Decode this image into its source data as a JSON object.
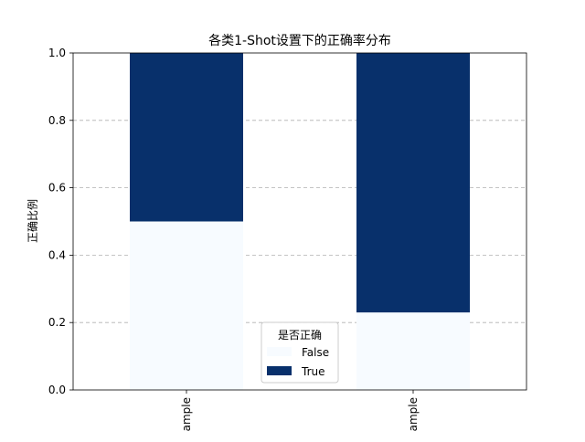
{
  "chart_data": {
    "type": "bar",
    "stacked": true,
    "title": "各类1-Shot设置下的正确率分布",
    "xlabel": "",
    "ylabel": "正确比例",
    "categories": [
      "ample",
      "ample"
    ],
    "series": [
      {
        "name": "False",
        "values": [
          0.5,
          0.23
        ],
        "color": "#f7fbff"
      },
      {
        "name": "True",
        "values": [
          0.5,
          0.77
        ],
        "color": "#08306b"
      }
    ],
    "ylim": [
      0,
      1.0
    ],
    "yticks": [
      "0.0",
      "0.2",
      "0.4",
      "0.6",
      "0.8",
      "1.0"
    ],
    "grid": {
      "y": true,
      "style": "dashed",
      "color": "#b0b0b0"
    },
    "legend": {
      "title": "是否正确",
      "placement": "lower-center",
      "entries": [
        "False",
        "True"
      ]
    }
  }
}
